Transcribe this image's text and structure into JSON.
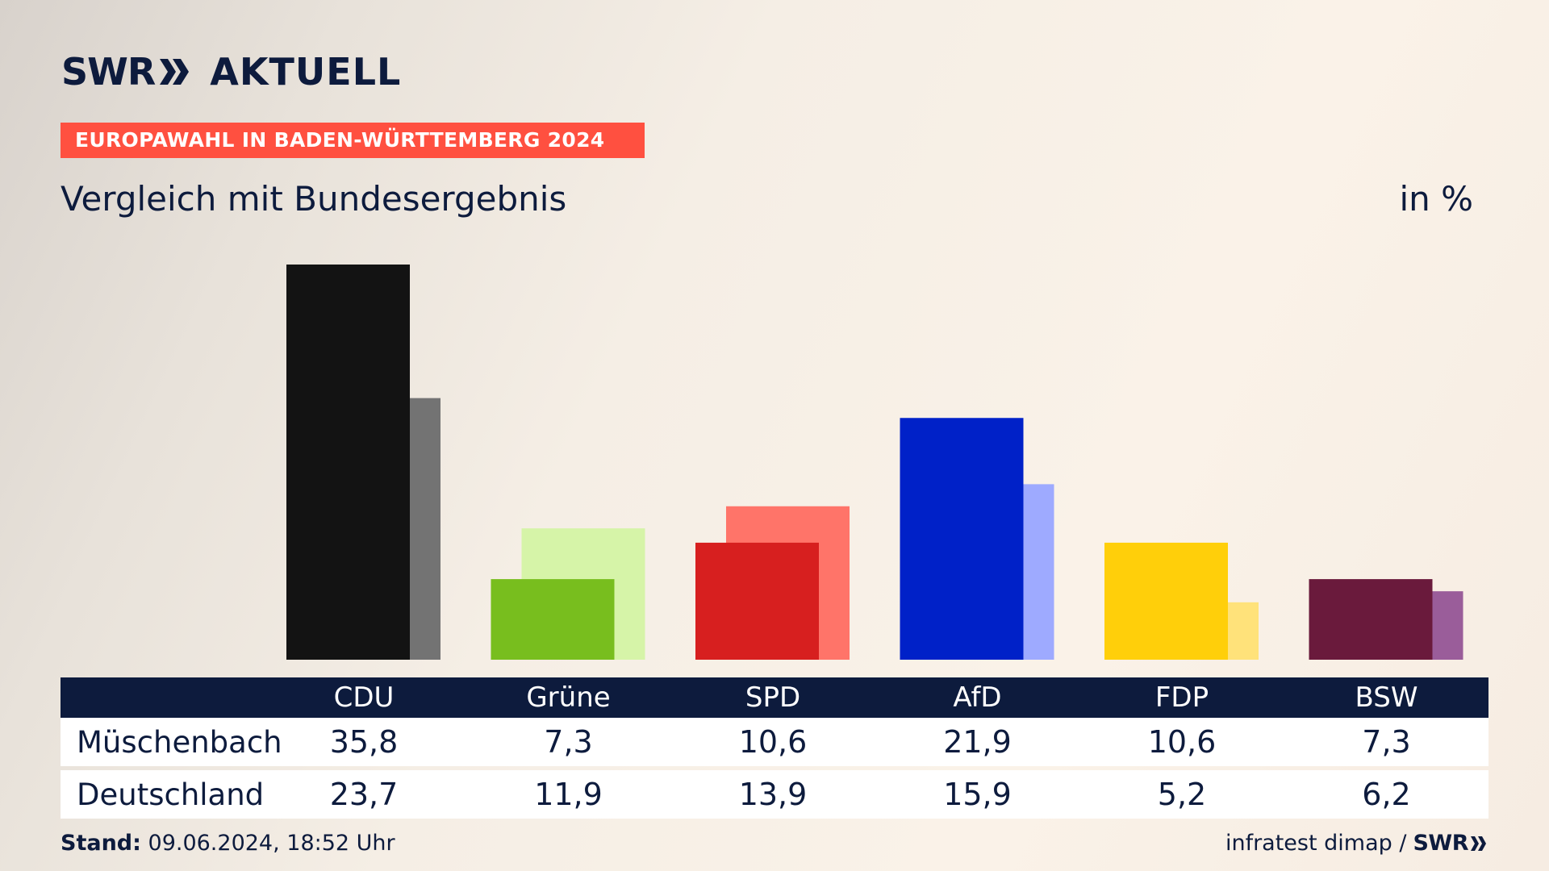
{
  "brand": {
    "swr": "SWR",
    "aktuell": "AKTUELL",
    "chevron_icon": "double-chevron-right-icon"
  },
  "banner": {
    "title": "EUROPAWAHL IN BADEN-WÜRTTEMBERG 2024"
  },
  "subtitle": "Vergleich mit Bundesergebnis",
  "unit": "in %",
  "chart_data": {
    "type": "bar",
    "title": "Vergleich mit Bundesergebnis",
    "ylabel": "in %",
    "xlabel": "",
    "ylim": [
      0,
      35.8
    ],
    "grid": false,
    "categories": [
      "CDU",
      "Grüne",
      "SPD",
      "AfD",
      "FDP",
      "BSW"
    ],
    "series": [
      {
        "name": "Müschenbach",
        "values": [
          35.8,
          7.3,
          10.6,
          21.9,
          10.6,
          7.3
        ],
        "colors": [
          "#131313",
          "#78be1e",
          "#d71f1f",
          "#0021c8",
          "#ffcf0a",
          "#6a1a3c"
        ]
      },
      {
        "name": "Deutschland",
        "values": [
          23.7,
          11.9,
          13.9,
          15.9,
          5.2,
          6.2
        ],
        "colors": [
          "#737373",
          "#d6f4a8",
          "#ff7469",
          "#9eaaff",
          "#ffe27a",
          "#9a5d9a"
        ]
      }
    ]
  },
  "table": {
    "headers": [
      "CDU",
      "Grüne",
      "SPD",
      "AfD",
      "FDP",
      "BSW"
    ],
    "rows": [
      {
        "label": "Müschenbach",
        "values": [
          "35,8",
          "7,3",
          "10,6",
          "21,9",
          "10,6",
          "7,3"
        ]
      },
      {
        "label": "Deutschland",
        "values": [
          "23,7",
          "11,9",
          "13,9",
          "15,9",
          "5,2",
          "6,2"
        ]
      }
    ]
  },
  "footer": {
    "stand_label": "Stand:",
    "stand_value": "09.06.2024, 18:52 Uhr",
    "source": "infratest dimap /",
    "source_brand": "SWR"
  }
}
